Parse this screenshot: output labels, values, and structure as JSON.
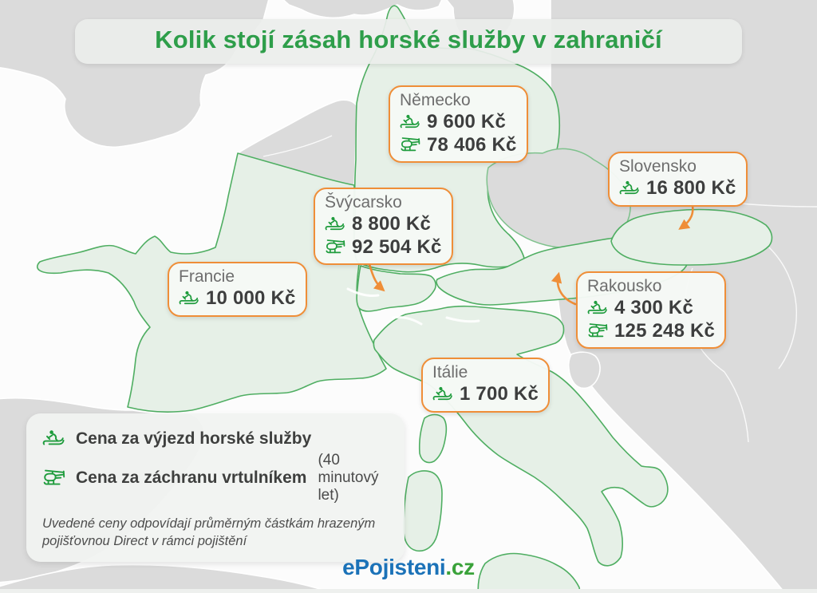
{
  "header": {
    "title": "Kolik stojí zásah horské služby v zahraničí"
  },
  "cards": [
    {
      "country": "Německo",
      "rescue_price": "9 600 Kč",
      "helicopter_price": "78 406 Kč"
    },
    {
      "country": "Slovensko",
      "rescue_price": "16 800 Kč"
    },
    {
      "country": "Švýcarsko",
      "rescue_price": "8 800 Kč",
      "helicopter_price": "92 504 Kč"
    },
    {
      "country": "Francie",
      "rescue_price": "10 000 Kč"
    },
    {
      "country": "Rakousko",
      "rescue_price": "4 300 Kč",
      "helicopter_price": "125 248 Kč"
    },
    {
      "country": "Itálie",
      "rescue_price": "1 700 Kč"
    }
  ],
  "legend": {
    "rescue_label": "Cena za výjezd horské služby",
    "helicopter_label": "Cena za záchranu vrtulníkem",
    "helicopter_suffix": "(40 minutový let)",
    "disclaimer": "Uvedené ceny odpovídají průměrným částkám hrazeným pojišťovnou Direct v rámci pojištění"
  },
  "footer": {
    "logo_primary": "ePojisteni",
    "logo_suffix": ".cz"
  },
  "icons": {
    "rescue": "snowmobile-icon",
    "helicopter": "helicopter-icon"
  },
  "colors": {
    "title_green": "#2e9e4a",
    "card_border_orange": "#ef8e38",
    "arrow_orange": "#ef8e38",
    "map_highlight_fill": "#e6f0e7",
    "map_highlight_stroke": "#4fae62",
    "map_neutral_fill": "#dbdbdb",
    "icon_green": "#1f9c3d",
    "value_text": "#3d3e3e",
    "country_label_text": "#6e6e6e",
    "logo_blue": "#1b72b8",
    "logo_green": "#3aa23a"
  }
}
